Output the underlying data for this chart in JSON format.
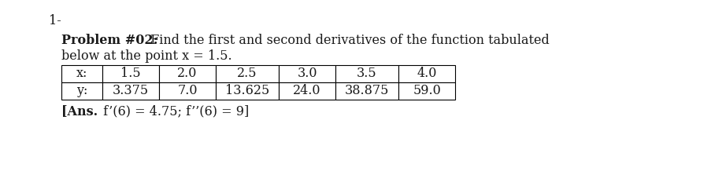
{
  "label_number": "1-",
  "problem_bold": "Problem #02:",
  "problem_rest": " Find the first and second derivatives of the function tabulated",
  "problem_line2": "below at the point x = 1.5.",
  "x_label": "x:",
  "y_label": "y:",
  "x_values": [
    "1.5",
    "2.0",
    "2.5",
    "3.0",
    "3.5",
    "4.0"
  ],
  "y_values": [
    "3.375",
    "7.0",
    "13.625",
    "24.0",
    "38.875",
    "59.0"
  ],
  "ans_line": "[Ans. f’(6) = 4.75; f’’(6) = 9]",
  "ans_bold_part": "[Ans.",
  "ans_normal_part": " f’(6) = 4.75; f’’(6) = 9]",
  "bg_color": "#ffffff",
  "text_color": "#1a1a1a",
  "font_size": 11.5,
  "font_size_small": 11.5
}
